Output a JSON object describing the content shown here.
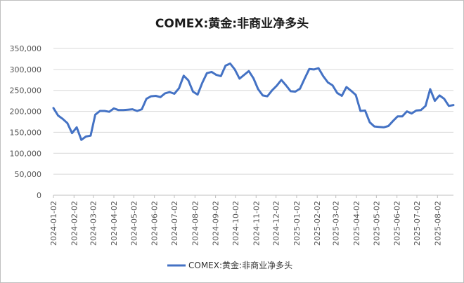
{
  "chart_data": {
    "type": "line",
    "title": "COMEX:黄金:非商业净多头",
    "xlabel": "",
    "ylabel": "",
    "ylim": [
      0,
      350000
    ],
    "y_ticks": [
      0,
      50000,
      100000,
      150000,
      200000,
      250000,
      300000,
      350000
    ],
    "y_tick_labels": [
      "0",
      "50,000",
      "100,000",
      "150,000",
      "200,000",
      "250,000",
      "300,000",
      "350,000"
    ],
    "x_tick_labels": [
      "2024-01-02",
      "2024-02-02",
      "2024-03-02",
      "2024-04-02",
      "2024-05-02",
      "2024-06-02",
      "2024-07-02",
      "2024-08-02",
      "2024-09-02",
      "2024-10-02",
      "2024-11-02",
      "2024-12-02",
      "2025-01-02",
      "2025-02-02",
      "2025-03-02",
      "2025-04-02",
      "2025-05-02",
      "2025-06-02",
      "2025-07-02",
      "2025-08-02"
    ],
    "grid": true,
    "legend_position": "bottom",
    "series": [
      {
        "name": "COMEX:黄金:非商业净多头",
        "color": "#4472c4",
        "points": [
          [
            "2024-01-02",
            208000
          ],
          [
            "2024-01-09",
            190000
          ],
          [
            "2024-01-16",
            182000
          ],
          [
            "2024-01-23",
            172000
          ],
          [
            "2024-01-30",
            148000
          ],
          [
            "2024-02-06",
            162000
          ],
          [
            "2024-02-13",
            132000
          ],
          [
            "2024-02-20",
            140000
          ],
          [
            "2024-02-27",
            142000
          ],
          [
            "2024-03-05",
            192000
          ],
          [
            "2024-03-12",
            201000
          ],
          [
            "2024-03-19",
            201000
          ],
          [
            "2024-03-26",
            199000
          ],
          [
            "2024-04-02",
            207000
          ],
          [
            "2024-04-09",
            203000
          ],
          [
            "2024-04-16",
            203000
          ],
          [
            "2024-04-23",
            204000
          ],
          [
            "2024-04-30",
            205000
          ],
          [
            "2024-05-07",
            201000
          ],
          [
            "2024-05-14",
            205000
          ],
          [
            "2024-05-21",
            230000
          ],
          [
            "2024-05-28",
            236000
          ],
          [
            "2024-06-04",
            237000
          ],
          [
            "2024-06-11",
            234000
          ],
          [
            "2024-06-18",
            243000
          ],
          [
            "2024-06-25",
            246000
          ],
          [
            "2024-07-02",
            242000
          ],
          [
            "2024-07-09",
            255000
          ],
          [
            "2024-07-16",
            285000
          ],
          [
            "2024-07-23",
            274000
          ],
          [
            "2024-07-30",
            247000
          ],
          [
            "2024-08-06",
            240000
          ],
          [
            "2024-08-13",
            268000
          ],
          [
            "2024-08-20",
            291000
          ],
          [
            "2024-08-27",
            294000
          ],
          [
            "2024-09-03",
            287000
          ],
          [
            "2024-09-10",
            284000
          ],
          [
            "2024-09-17",
            309000
          ],
          [
            "2024-09-24",
            314000
          ],
          [
            "2024-10-01",
            300000
          ],
          [
            "2024-10-08",
            278000
          ],
          [
            "2024-10-15",
            287000
          ],
          [
            "2024-10-22",
            296000
          ],
          [
            "2024-10-29",
            279000
          ],
          [
            "2024-11-05",
            253000
          ],
          [
            "2024-11-12",
            238000
          ],
          [
            "2024-11-19",
            236000
          ],
          [
            "2024-11-26",
            250000
          ],
          [
            "2024-12-03",
            261000
          ],
          [
            "2024-12-10",
            275000
          ],
          [
            "2024-12-17",
            262000
          ],
          [
            "2024-12-24",
            248000
          ],
          [
            "2024-12-31",
            247000
          ],
          [
            "2025-01-07",
            254000
          ],
          [
            "2025-01-14",
            278000
          ],
          [
            "2025-01-21",
            301000
          ],
          [
            "2025-01-28",
            300000
          ],
          [
            "2025-02-04",
            303000
          ],
          [
            "2025-02-11",
            284000
          ],
          [
            "2025-02-18",
            269000
          ],
          [
            "2025-02-25",
            262000
          ],
          [
            "2025-03-04",
            244000
          ],
          [
            "2025-03-11",
            237000
          ],
          [
            "2025-03-18",
            258000
          ],
          [
            "2025-03-25",
            249000
          ],
          [
            "2025-04-01",
            239000
          ],
          [
            "2025-04-08",
            201000
          ],
          [
            "2025-04-15",
            202000
          ],
          [
            "2025-04-22",
            174000
          ],
          [
            "2025-04-29",
            164000
          ],
          [
            "2025-05-06",
            163000
          ],
          [
            "2025-05-13",
            162000
          ],
          [
            "2025-05-20",
            165000
          ],
          [
            "2025-05-27",
            177000
          ],
          [
            "2025-06-03",
            188000
          ],
          [
            "2025-06-10",
            188000
          ],
          [
            "2025-06-17",
            200000
          ],
          [
            "2025-06-24",
            195000
          ],
          [
            "2025-07-01",
            202000
          ],
          [
            "2025-07-08",
            203000
          ],
          [
            "2025-07-15",
            213000
          ],
          [
            "2025-07-22",
            253000
          ],
          [
            "2025-07-29",
            225000
          ],
          [
            "2025-08-05",
            238000
          ],
          [
            "2025-08-12",
            230000
          ],
          [
            "2025-08-19",
            213000
          ],
          [
            "2025-08-26",
            215000
          ]
        ]
      }
    ]
  }
}
